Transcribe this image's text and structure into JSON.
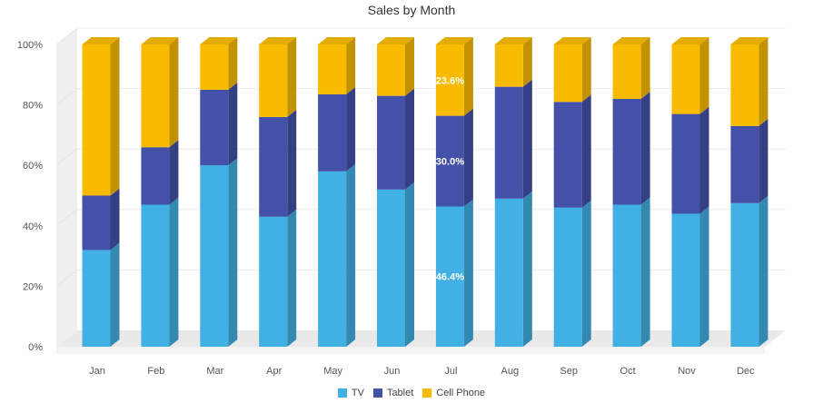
{
  "chart_data": {
    "type": "bar",
    "stacked": true,
    "percent_stacked": true,
    "three_d": true,
    "title": "Sales by Month",
    "xlabel": "",
    "ylabel": "",
    "ylim": [
      0,
      100
    ],
    "y_tick_labels": [
      "0%",
      "20%",
      "40%",
      "60%",
      "80%",
      "100%"
    ],
    "grid": true,
    "legend_position": "bottom",
    "categories": [
      "Jan",
      "Feb",
      "Mar",
      "Apr",
      "May",
      "Jun",
      "Jul",
      "Aug",
      "Sep",
      "Oct",
      "Nov",
      "Dec"
    ],
    "series": [
      {
        "name": "TV",
        "color": "#41b0e4",
        "values": [
          32,
          47,
          60,
          43,
          58,
          52,
          46.4,
          49,
          46,
          47,
          44,
          47.5
        ]
      },
      {
        "name": "Tablet",
        "color": "#4451a8",
        "values": [
          18,
          19,
          25,
          33,
          25.5,
          31,
          30.0,
          37,
          35,
          35,
          33,
          25.5
        ]
      },
      {
        "name": "Cell Phone",
        "color": "#f9bb00",
        "values": [
          50,
          34,
          15,
          24,
          16.5,
          17,
          23.6,
          14,
          19,
          18,
          23,
          27
        ]
      }
    ],
    "data_labels": [
      {
        "category": "Jul",
        "series": "TV",
        "text": "46.4%"
      },
      {
        "category": "Jul",
        "series": "Tablet",
        "text": "30.0%"
      },
      {
        "category": "Jul",
        "series": "Cell Phone",
        "text": "23.6%"
      }
    ]
  }
}
